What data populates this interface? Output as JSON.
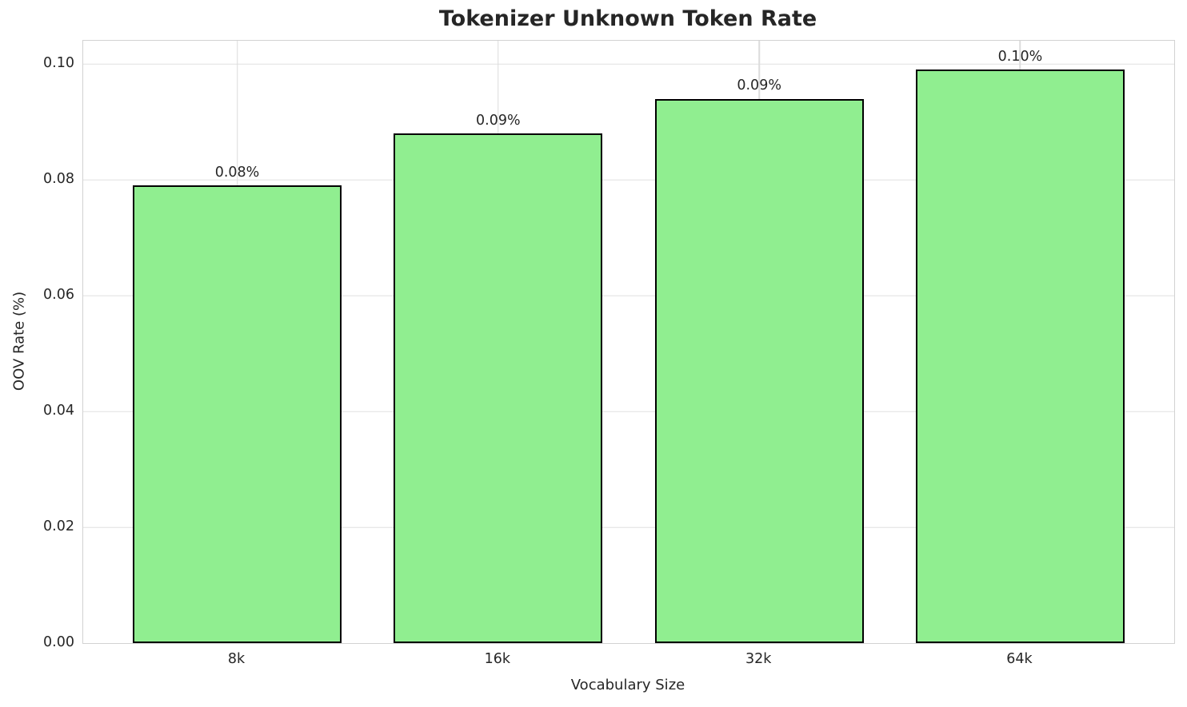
{
  "title": "Tokenizer Unknown Token Rate",
  "chart_data": {
    "type": "bar",
    "title": "Tokenizer Unknown Token Rate",
    "xlabel": "Vocabulary Size",
    "ylabel": "OOV Rate (%)",
    "categories": [
      "8k",
      "16k",
      "32k",
      "64k"
    ],
    "values": [
      0.079,
      0.088,
      0.094,
      0.099
    ],
    "bar_labels": [
      "0.08%",
      "0.09%",
      "0.09%",
      "0.10%"
    ],
    "ylim": [
      0,
      0.104
    ],
    "yticks": [
      0.0,
      0.02,
      0.04,
      0.06,
      0.08,
      0.1
    ],
    "ytick_labels": [
      "0.00",
      "0.02",
      "0.04",
      "0.06",
      "0.08",
      "0.10"
    ],
    "grid": true,
    "legend": "none",
    "bar_color": "#90EE90",
    "bar_edge_color": "#000000",
    "text_color": "#262626"
  }
}
